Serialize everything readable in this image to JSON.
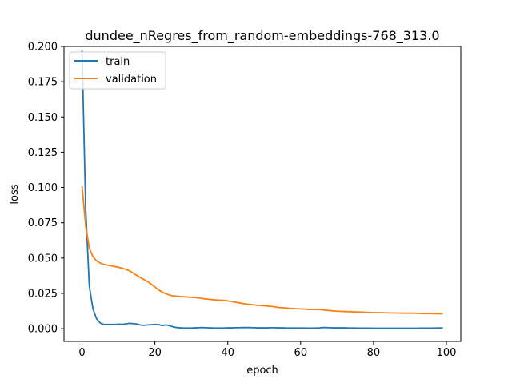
{
  "chart_data": {
    "type": "line",
    "title": "dundee_nRegres_from_random-embeddings-768_313.0",
    "xlabel": "epoch",
    "ylabel": "loss",
    "xlim": [
      -4.95,
      103.95
    ],
    "ylim": [
      -0.009,
      0.2
    ],
    "x_ticks": [
      0,
      20,
      40,
      60,
      80,
      100
    ],
    "y_ticks": [
      0.0,
      0.025,
      0.05,
      0.075,
      0.1,
      0.125,
      0.15,
      0.175,
      0.2
    ],
    "x_tick_labels": [
      "0",
      "20",
      "40",
      "60",
      "80",
      "100"
    ],
    "y_tick_labels": [
      "0.000",
      "0.025",
      "0.050",
      "0.075",
      "0.100",
      "0.125",
      "0.150",
      "0.175",
      "0.200"
    ],
    "legend_position": "upper-left",
    "grid": false,
    "x": [
      0,
      1,
      2,
      3,
      4,
      5,
      6,
      7,
      8,
      9,
      10,
      11,
      12,
      13,
      14,
      15,
      16,
      17,
      18,
      19,
      20,
      21,
      22,
      23,
      24,
      25,
      26,
      27,
      28,
      29,
      30,
      31,
      32,
      33,
      34,
      35,
      36,
      37,
      38,
      39,
      40,
      41,
      42,
      43,
      44,
      45,
      46,
      47,
      48,
      49,
      50,
      51,
      52,
      53,
      54,
      55,
      56,
      57,
      58,
      59,
      60,
      61,
      62,
      63,
      64,
      65,
      66,
      67,
      68,
      69,
      70,
      71,
      72,
      73,
      74,
      75,
      76,
      77,
      78,
      79,
      80,
      81,
      82,
      83,
      84,
      85,
      86,
      87,
      88,
      89,
      90,
      91,
      92,
      93,
      94,
      95,
      96,
      97,
      98,
      99
    ],
    "series": [
      {
        "name": "train",
        "color": "#1f77b4",
        "values": [
          0.197,
          0.085,
          0.03,
          0.014,
          0.007,
          0.004,
          0.003,
          0.003,
          0.003,
          0.003,
          0.0032,
          0.0031,
          0.0034,
          0.0038,
          0.0036,
          0.0033,
          0.0026,
          0.0024,
          0.0027,
          0.0028,
          0.003,
          0.0029,
          0.0022,
          0.0027,
          0.0022,
          0.0013,
          0.0008,
          0.0006,
          0.0005,
          0.0005,
          0.0005,
          0.0006,
          0.0007,
          0.0008,
          0.0007,
          0.0006,
          0.0005,
          0.0005,
          0.0005,
          0.0005,
          0.0006,
          0.0006,
          0.0007,
          0.0007,
          0.0008,
          0.0008,
          0.0008,
          0.0007,
          0.0006,
          0.0006,
          0.0006,
          0.0006,
          0.0007,
          0.0007,
          0.0006,
          0.0006,
          0.0005,
          0.0005,
          0.0005,
          0.0005,
          0.0005,
          0.0005,
          0.0004,
          0.0004,
          0.0005,
          0.0005,
          0.0008,
          0.0008,
          0.0007,
          0.0006,
          0.0006,
          0.0006,
          0.0006,
          0.0005,
          0.0005,
          0.0005,
          0.0004,
          0.0004,
          0.0004,
          0.0004,
          0.0003,
          0.0003,
          0.0003,
          0.0003,
          0.0003,
          0.0003,
          0.0003,
          0.0003,
          0.0003,
          0.0003,
          0.0003,
          0.0003,
          0.0003,
          0.0004,
          0.0004,
          0.0004,
          0.0004,
          0.0005,
          0.0005,
          0.0006
        ]
      },
      {
        "name": "validation",
        "color": "#ff7f0e",
        "values": [
          0.101,
          0.073,
          0.057,
          0.051,
          0.048,
          0.0465,
          0.0455,
          0.045,
          0.0445,
          0.044,
          0.0435,
          0.0428,
          0.042,
          0.041,
          0.0395,
          0.0378,
          0.0362,
          0.0348,
          0.0333,
          0.0315,
          0.0295,
          0.0275,
          0.0259,
          0.0248,
          0.0238,
          0.0232,
          0.023,
          0.0228,
          0.0226,
          0.0224,
          0.0222,
          0.022,
          0.0218,
          0.0214,
          0.021,
          0.0208,
          0.0205,
          0.0203,
          0.0202,
          0.02,
          0.0197,
          0.0193,
          0.0188,
          0.0183,
          0.0179,
          0.0175,
          0.0172,
          0.0169,
          0.0166,
          0.0164,
          0.0162,
          0.016,
          0.0158,
          0.0154,
          0.015,
          0.0148,
          0.0146,
          0.0144,
          0.0143,
          0.0141,
          0.014,
          0.0139,
          0.0137,
          0.0136,
          0.0136,
          0.0135,
          0.0134,
          0.013,
          0.0128,
          0.0126,
          0.0124,
          0.0123,
          0.0122,
          0.0121,
          0.012,
          0.0119,
          0.0118,
          0.0117,
          0.0116,
          0.0115,
          0.0114,
          0.0114,
          0.0113,
          0.0113,
          0.0112,
          0.0112,
          0.0111,
          0.0111,
          0.011,
          0.011,
          0.011,
          0.011,
          0.0109,
          0.0108,
          0.0107,
          0.0107,
          0.0107,
          0.0106,
          0.0106,
          0.0105
        ]
      }
    ]
  }
}
